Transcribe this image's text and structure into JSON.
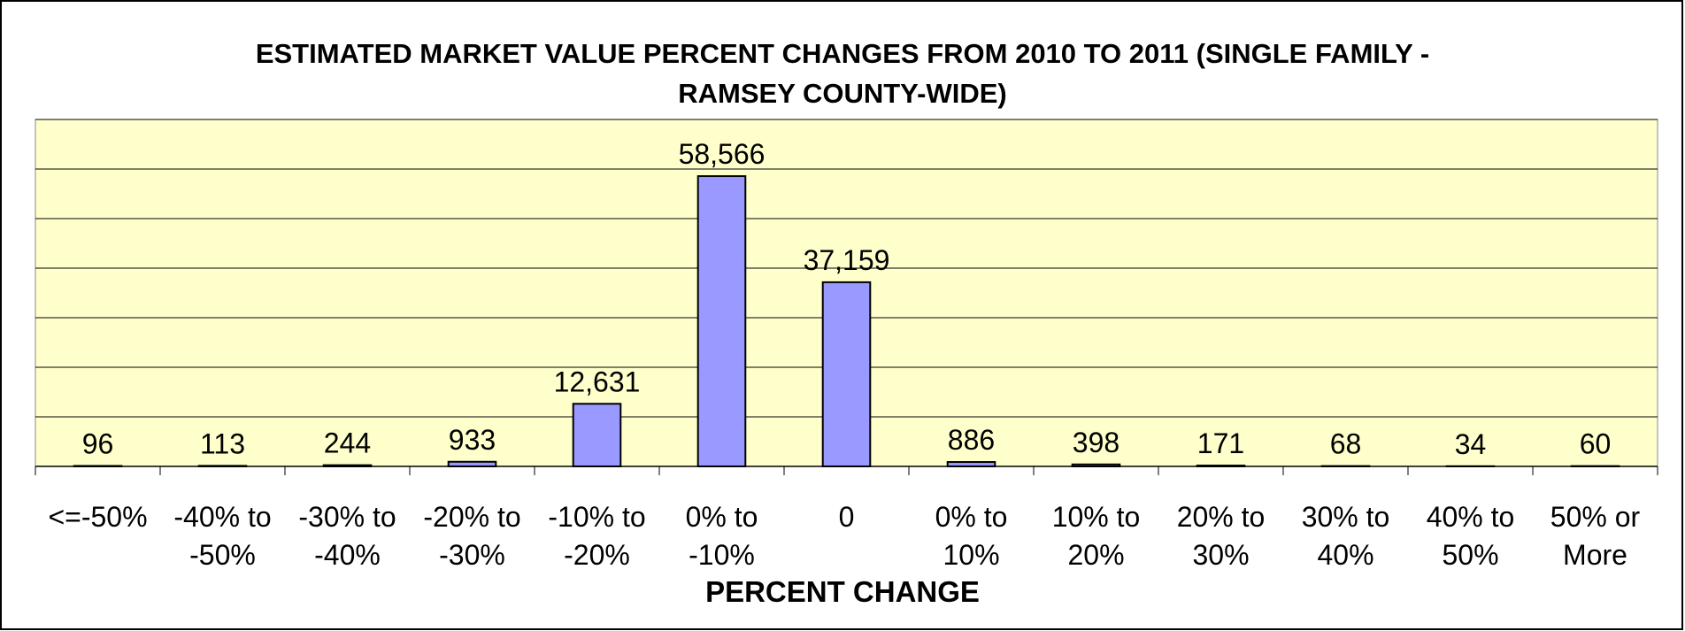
{
  "chart_data": {
    "type": "bar",
    "title": "ESTIMATED MARKET VALUE PERCENT CHANGES FROM 2010 TO 2011 (SINGLE FAMILY - RAMSEY COUNTY-WIDE)",
    "x_label": "PERCENT CHANGE",
    "categories": [
      "<=-50%",
      "-40% to -50%",
      "-30% to -40%",
      "-20% to -30%",
      "-10% to -20%",
      "0%  to -10%",
      "0",
      "0% to 10%",
      "10% to 20%",
      "20% to 30%",
      "30% to 40%",
      "40% to 50%",
      "50% or More"
    ],
    "values": [
      96,
      113,
      244,
      933,
      12631,
      58566,
      37159,
      886,
      398,
      171,
      68,
      34,
      60
    ],
    "value_labels": [
      "96",
      "113",
      "244",
      "933",
      "12,631",
      "58,566",
      "37,159",
      "886",
      "398",
      "171",
      "68",
      "34",
      "60"
    ],
    "color": "#9999ff",
    "ylim": [
      0,
      70000
    ],
    "yticks": [
      0,
      10000,
      20000,
      30000,
      40000,
      50000,
      60000,
      70000
    ],
    "grid": true
  }
}
